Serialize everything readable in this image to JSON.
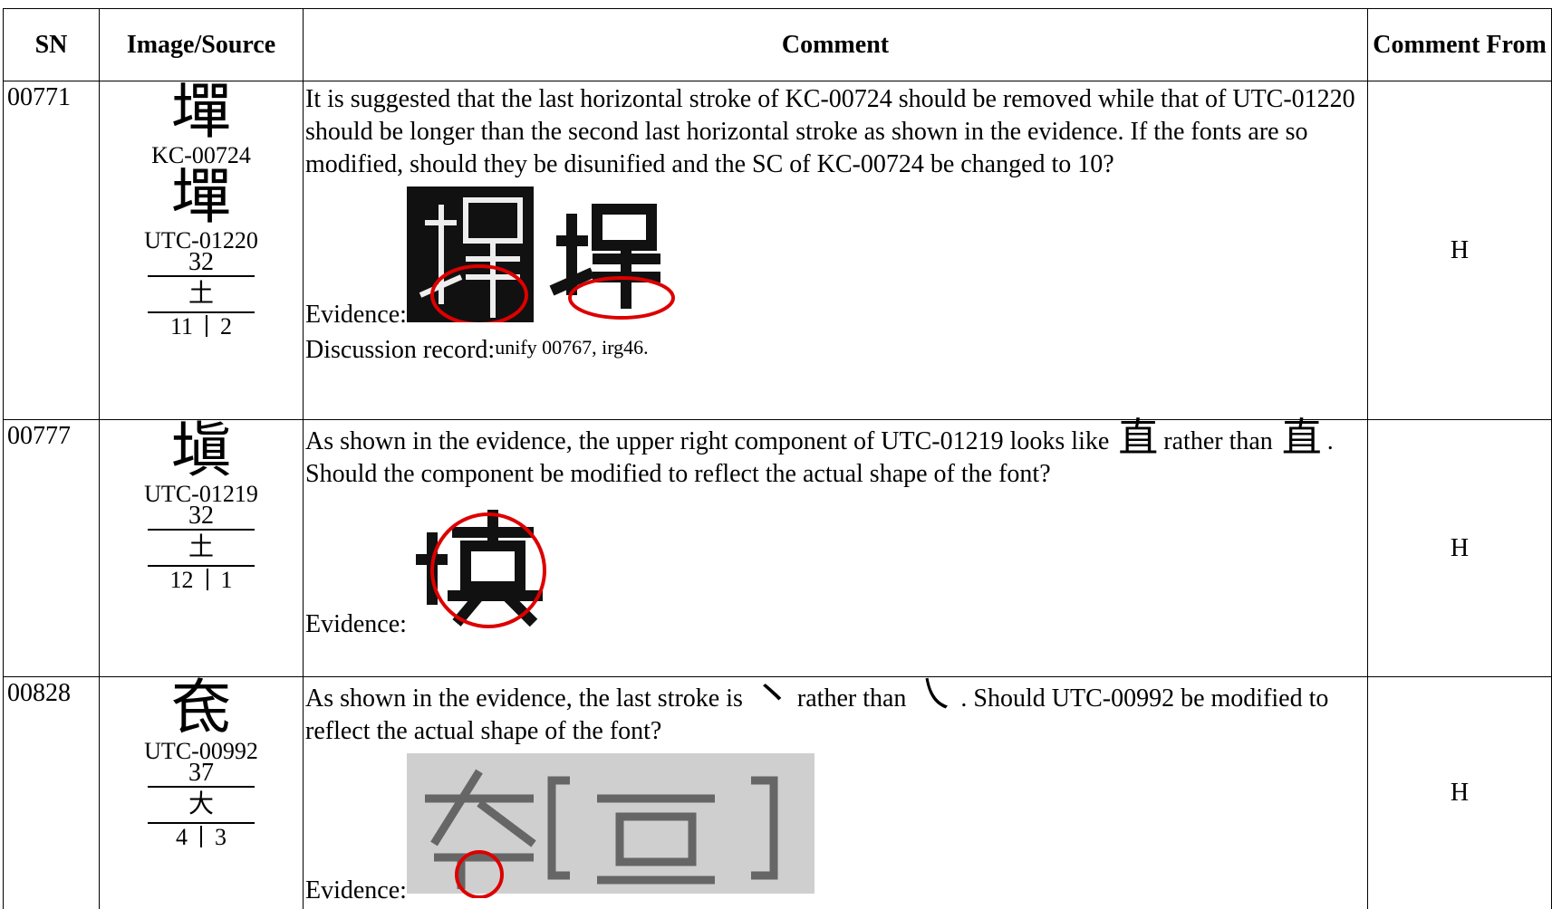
{
  "table": {
    "headers": [
      "SN",
      "Image/Source",
      "Comment",
      "Comment From"
    ],
    "rows": [
      {
        "sn": "00771",
        "sources": [
          {
            "glyph": "墠",
            "label": "KC-00724"
          },
          {
            "glyph": "墠",
            "label": "UTC-01220"
          }
        ],
        "radical_stroke_count": 32,
        "radical": "土",
        "strokes": [
          11,
          2
        ],
        "comment_parts": [
          "It is suggested that the last horizontal stroke of KC-00724 should be removed while that of UTC-01220 should be longer than the second last horizontal stroke as shown in the evidence.  If the fonts are so modified, should they be disunified and the SC of KC-00724 be changed to 10?"
        ],
        "evidence_label": "Evidence:",
        "discussion": {
          "label": "Discussion record:",
          "text": "unify 00767, irg46."
        },
        "comment_from": "H"
      },
      {
        "sn": "00777",
        "sources": [
          {
            "glyph": "塡",
            "label": "UTC-01219"
          }
        ],
        "radical_stroke_count": 32,
        "radical": "土",
        "strokes": [
          12,
          1
        ],
        "comment_parts": [
          "As shown in the evidence, the upper right component of UTC-01219 looks like",
          "直",
          "rather than",
          "直",
          ".  Should the component be modified to reflect the actual shape of the font?"
        ],
        "evidence_label": "Evidence:",
        "comment_from": "H"
      },
      {
        "sn": "00828",
        "sources": [
          {
            "glyph": "奃",
            "label": "UTC-00992"
          }
        ],
        "radical_stroke_count": 37,
        "radical": "大",
        "strokes": [
          4,
          3
        ],
        "comment_parts": [
          "As shown in the evidence, the last stroke is",
          "㇔",
          "rather than",
          "㇏",
          ".  Should UTC-00992 be modified to reflect the actual shape of the font?"
        ],
        "evidence_label": "Evidence:",
        "comment_from": "H"
      }
    ]
  }
}
